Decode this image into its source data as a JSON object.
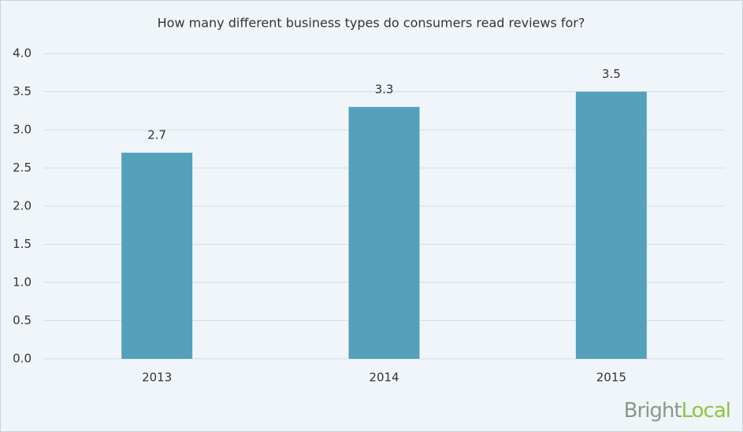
{
  "chart_data": {
    "type": "bar",
    "title": "How many different business types do consumers read reviews for?",
    "categories": [
      "2013",
      "2014",
      "2015"
    ],
    "values": [
      2.7,
      3.3,
      3.5
    ],
    "color": "#55a0bb",
    "ylim": [
      0,
      4
    ],
    "yticks": [
      {
        "value": 0,
        "label": "0.0"
      },
      0.5,
      {
        "value": 1,
        "label": "1.0"
      },
      1.5,
      {
        "value": 2,
        "label": "2.0"
      },
      2.5,
      {
        "value": 3,
        "label": "3.0"
      },
      3.5,
      {
        "value": 4,
        "label": "4.0"
      }
    ],
    "grid": true,
    "watermark": [
      "Bright",
      "Local"
    ]
  }
}
